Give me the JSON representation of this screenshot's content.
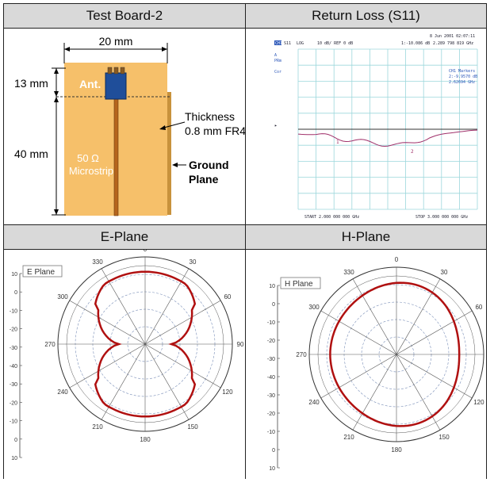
{
  "headers": {
    "board": "Test Board-2",
    "return_loss": "Return Loss (S11)",
    "e_plane": "E-Plane",
    "h_plane": "H-Plane"
  },
  "board": {
    "width_dim": "20 mm",
    "top_dim": "13 mm",
    "main_dim": "40 mm",
    "ant_label": "Ant.",
    "microstrip_label_1": "50 Ω",
    "microstrip_label_2": "Microstrip",
    "thickness_1": "Thickness",
    "thickness_2": "0.8 mm FR4",
    "ground_1": "Ground",
    "ground_2": "Plane",
    "colors": {
      "board": "#f6c06a",
      "antenna": "#1f4e9a",
      "strip": "#b5651d"
    }
  },
  "vna": {
    "date": "8 Jun 2001  02:07:11",
    "ch": "CH1",
    "param": "S11",
    "fmt": "LOG",
    "scale": "10 dB/ REF 0 dB",
    "marker_read": "1:-10.086 dB",
    "marker_freq": "2.289 798 819 GHz",
    "side_a": "A",
    "side_pm": "PRm",
    "side_cor": "Cor",
    "mk_title": "CH1 Markers",
    "mk_line1": "2:-9.9570 dB",
    "mk_line2": "2.62694 GHz",
    "start": "START 2.000 000 000 GHz",
    "stop": "STOP 3.000 000 000 GHz",
    "m1": "1",
    "m2": "2",
    "ref_mark": "▸"
  },
  "e_plot": {
    "legend": "E Plane",
    "angles": [
      "0",
      "30",
      "60",
      "90",
      "120",
      "150",
      "180",
      "210",
      "240",
      "270",
      "300",
      "330"
    ],
    "y_ticks": [
      "10",
      "0",
      "-10",
      "-20",
      "-30",
      "-40",
      "-30",
      "-20",
      "-10",
      "0",
      "10"
    ]
  },
  "h_plot": {
    "legend": "H Plane",
    "angles": [
      "0",
      "30",
      "60",
      "90",
      "120",
      "150",
      "180",
      "210",
      "240",
      "270",
      "300",
      "330"
    ],
    "y_ticks": [
      "10",
      "0",
      "-10",
      "-20",
      "-30",
      "-40",
      "-30",
      "-20",
      "-10",
      "0",
      "10"
    ]
  },
  "colors": {
    "pattern": "#b01010",
    "grid": "#9cd7dc",
    "polar_grid": "#7a8fb8",
    "trace": "#a0306a"
  }
}
